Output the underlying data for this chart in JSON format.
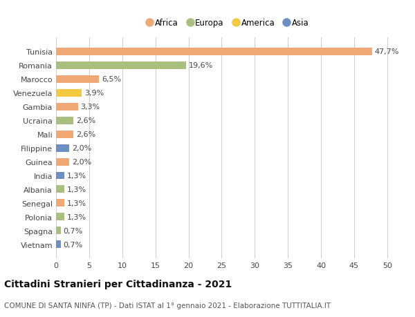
{
  "categories": [
    "Tunisia",
    "Romania",
    "Marocco",
    "Venezuela",
    "Gambia",
    "Ucraina",
    "Mali",
    "Filippine",
    "Guinea",
    "India",
    "Albania",
    "Senegal",
    "Polonia",
    "Spagna",
    "Vietnam"
  ],
  "values": [
    47.7,
    19.6,
    6.5,
    3.9,
    3.3,
    2.6,
    2.6,
    2.0,
    2.0,
    1.3,
    1.3,
    1.3,
    1.3,
    0.7,
    0.7
  ],
  "labels": [
    "47,7%",
    "19,6%",
    "6,5%",
    "3,9%",
    "3,3%",
    "2,6%",
    "2,6%",
    "2,0%",
    "2,0%",
    "1,3%",
    "1,3%",
    "1,3%",
    "1,3%",
    "0,7%",
    "0,7%"
  ],
  "colors": [
    "#F0A875",
    "#AABF7E",
    "#F0A875",
    "#F5C842",
    "#F0A875",
    "#AABF7E",
    "#F0A875",
    "#6B8FC2",
    "#F0A875",
    "#6B8FC2",
    "#AABF7E",
    "#F0A875",
    "#AABF7E",
    "#AABF7E",
    "#6B8FC2"
  ],
  "legend_labels": [
    "Africa",
    "Europa",
    "America",
    "Asia"
  ],
  "legend_colors": [
    "#F0A875",
    "#AABF7E",
    "#F5C842",
    "#6B8FC2"
  ],
  "title": "Cittadini Stranieri per Cittadinanza - 2021",
  "subtitle": "COMUNE DI SANTA NINFA (TP) - Dati ISTAT al 1° gennaio 2021 - Elaborazione TUTTITALIA.IT",
  "xlim": [
    0,
    52
  ],
  "xticks": [
    0,
    5,
    10,
    15,
    20,
    25,
    30,
    35,
    40,
    45,
    50
  ],
  "background_color": "#ffffff",
  "grid_color": "#cccccc",
  "bar_height": 0.55,
  "label_fontsize": 8,
  "ytick_fontsize": 8,
  "xtick_fontsize": 8,
  "legend_fontsize": 8.5,
  "title_fontsize": 10,
  "subtitle_fontsize": 7.5
}
